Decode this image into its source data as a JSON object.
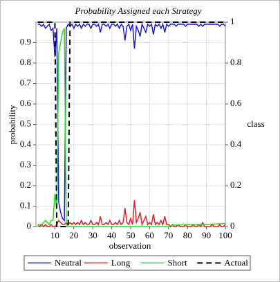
{
  "chart_data": {
    "type": "line",
    "title": "Probability Assigned each Strategy",
    "x_label": "observation",
    "y_label": "probability",
    "y2_label": "class",
    "x": [
      1,
      2,
      3,
      4,
      5,
      6,
      7,
      8,
      9,
      10,
      11,
      12,
      13,
      14,
      15,
      16,
      17,
      18,
      19,
      20,
      21,
      22,
      23,
      24,
      25,
      26,
      27,
      28,
      29,
      30,
      31,
      32,
      33,
      34,
      35,
      36,
      37,
      38,
      39,
      40,
      41,
      42,
      43,
      44,
      45,
      46,
      47,
      48,
      49,
      50,
      51,
      52,
      53,
      54,
      55,
      56,
      57,
      58,
      59,
      60,
      61,
      62,
      63,
      64,
      65,
      66,
      67,
      68,
      69,
      70,
      71,
      72,
      73,
      74,
      75,
      76,
      77,
      78,
      79,
      80,
      81,
      82,
      83,
      84,
      85,
      86,
      87,
      88,
      89,
      90,
      91,
      92,
      93,
      94,
      95,
      96,
      97,
      98,
      99,
      100
    ],
    "xlim": [
      0,
      100
    ],
    "xticks": [
      10,
      20,
      30,
      40,
      50,
      60,
      70,
      80,
      90,
      100
    ],
    "ylim": [
      0,
      1
    ],
    "yticks": [
      0,
      0.1,
      0.2,
      0.3,
      0.4,
      0.5,
      0.6,
      0.7,
      0.8,
      0.9
    ],
    "y2lim": [
      0,
      1
    ],
    "y2ticks": [
      0,
      0.2,
      0.4,
      0.6,
      0.8,
      1
    ],
    "grid": true,
    "legend": "bottom",
    "series": [
      {
        "name": "Neutral",
        "color": "#1a1ad6",
        "values": [
          0.99,
          0.99,
          0.98,
          0.99,
          0.97,
          0.98,
          0.99,
          0.96,
          0.97,
          0.83,
          0.97,
          0.12,
          0.07,
          0.04,
          0.03,
          0.97,
          0.99,
          0.98,
          0.99,
          0.97,
          0.99,
          0.98,
          0.99,
          0.97,
          0.99,
          0.98,
          0.99,
          0.99,
          0.97,
          0.99,
          0.99,
          0.98,
          0.99,
          0.95,
          0.99,
          0.99,
          0.98,
          0.99,
          0.97,
          0.99,
          0.99,
          0.98,
          0.99,
          0.97,
          0.99,
          0.98,
          0.91,
          0.98,
          0.99,
          0.96,
          0.99,
          0.87,
          0.98,
          0.96,
          0.93,
          0.99,
          0.97,
          0.95,
          0.99,
          0.98,
          0.99,
          0.94,
          0.99,
          0.98,
          0.99,
          0.97,
          0.99,
          0.95,
          0.99,
          0.98,
          0.99,
          0.99,
          0.99,
          0.98,
          0.99,
          0.99,
          0.99,
          0.99,
          0.98,
          0.99,
          0.99,
          0.99,
          0.99,
          0.99,
          0.99,
          0.98,
          0.99,
          0.98,
          0.99,
          0.99,
          0.99,
          0.99,
          0.99,
          0.99,
          0.99,
          0.99,
          0.98,
          0.99,
          0.99,
          0.98
        ]
      },
      {
        "name": "Long",
        "color": "#e01e1e",
        "values": [
          0.01,
          0,
          0.01,
          0,
          0.01,
          0,
          0,
          0.01,
          0,
          0,
          0.01,
          0.03,
          0.02,
          0.01,
          0.01,
          0.02,
          0.01,
          0.02,
          0.01,
          0.02,
          0.01,
          0.02,
          0.01,
          0.03,
          0.01,
          0.02,
          0.01,
          0.01,
          0.03,
          0.01,
          0.01,
          0.02,
          0.01,
          0.05,
          0.01,
          0.01,
          0.02,
          0.01,
          0.03,
          0.01,
          0.01,
          0.02,
          0.01,
          0.03,
          0.01,
          0.02,
          0.09,
          0.02,
          0.01,
          0.04,
          0.01,
          0.13,
          0.02,
          0.04,
          0.07,
          0.01,
          0.03,
          0.05,
          0.01,
          0.02,
          0.01,
          0.06,
          0.01,
          0.02,
          0.01,
          0.03,
          0.01,
          0.05,
          0.01,
          0.01,
          0,
          0.01,
          0,
          0,
          0.01,
          0,
          0,
          0,
          0.01,
          0,
          0,
          0,
          0.01,
          0,
          0,
          0.01,
          0,
          0.02,
          0,
          0,
          0,
          0,
          0.01,
          0,
          0,
          0,
          0.01,
          0,
          0,
          0.01
        ]
      },
      {
        "name": "Short",
        "color": "#22dd22",
        "values": [
          0,
          0.01,
          0.01,
          0.02,
          0.03,
          0.02,
          0.01,
          0.03,
          0.03,
          0.16,
          0.09,
          0.85,
          0.9,
          0.95,
          0.97,
          0.01,
          0,
          0,
          0,
          0,
          0,
          0,
          0,
          0,
          0,
          0,
          0,
          0,
          0,
          0,
          0,
          0,
          0,
          0,
          0,
          0,
          0,
          0,
          0,
          0,
          0,
          0,
          0,
          0,
          0,
          0,
          0,
          0,
          0,
          0,
          0,
          0,
          0,
          0,
          0,
          0,
          0,
          0,
          0,
          0,
          0,
          0,
          0,
          0,
          0,
          0,
          0,
          0,
          0,
          0,
          0.005,
          0.006,
          0.007,
          0.007,
          0.008,
          0.008,
          0.008,
          0.009,
          0.009,
          0.009,
          0.01,
          0.01,
          0.01,
          0.01,
          0.01,
          0.01,
          0.01,
          0.01,
          0.01,
          0.01,
          0.011,
          0.011,
          0.012,
          0.012,
          0.013,
          0.013,
          0.014,
          0.014,
          0.015,
          0.015
        ]
      },
      {
        "name": "Actual",
        "color": "#000000",
        "dashed": true,
        "axis": "y2",
        "values": [
          1,
          1,
          1,
          1,
          1,
          1,
          1,
          1,
          1,
          1,
          0,
          0,
          0,
          0,
          0,
          0,
          0,
          1,
          1,
          1,
          1,
          1,
          1,
          1,
          1,
          1,
          1,
          1,
          1,
          1,
          1,
          1,
          1,
          1,
          1,
          1,
          1,
          1,
          1,
          1,
          1,
          1,
          1,
          1,
          1,
          1,
          1,
          1,
          1,
          1,
          1,
          1,
          1,
          1,
          1,
          1,
          1,
          1,
          1,
          1,
          1,
          1,
          1,
          1,
          1,
          1,
          1,
          1,
          1,
          1,
          1,
          1,
          1,
          1,
          1,
          1,
          1,
          1,
          1,
          1,
          1,
          1,
          1,
          1,
          1,
          1,
          1,
          1,
          1,
          1,
          1,
          1,
          1,
          1,
          1,
          1,
          1,
          1,
          1,
          1
        ]
      }
    ]
  }
}
